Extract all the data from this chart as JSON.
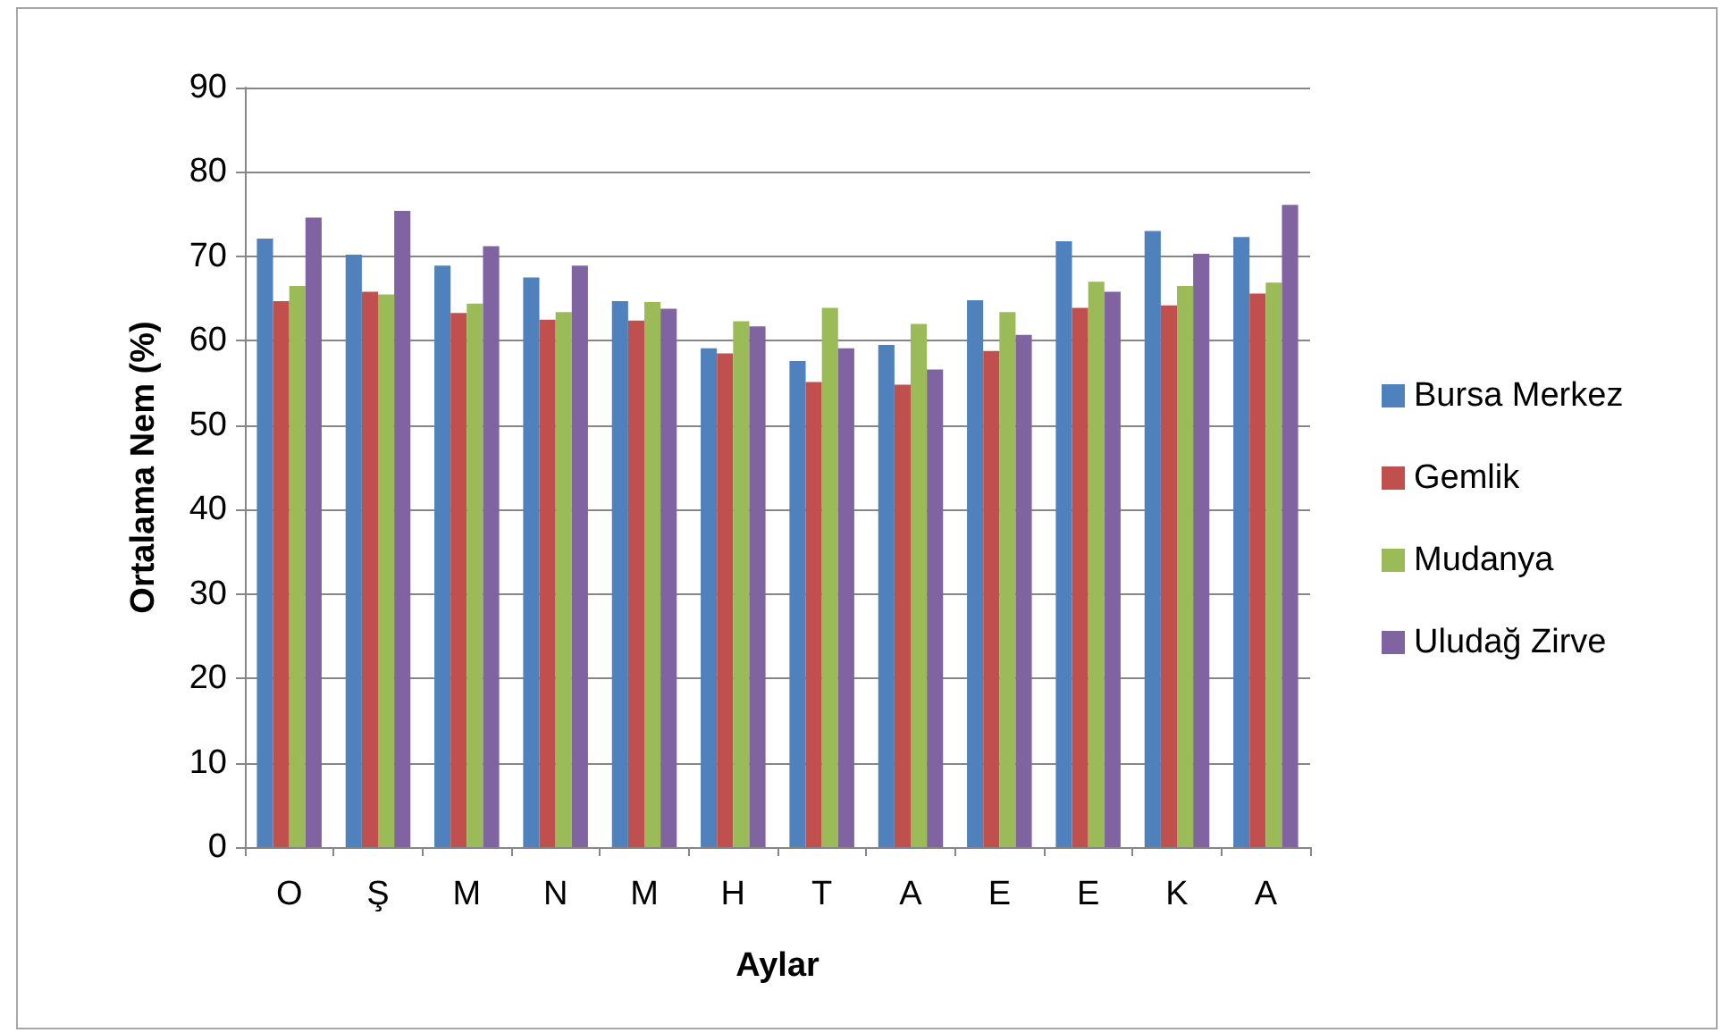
{
  "chart_data": {
    "type": "bar",
    "xlabel": "Aylar",
    "ylabel": "Ortalama Nem (%)",
    "categories": [
      "O",
      "Ş",
      "M",
      "N",
      "M",
      "H",
      "T",
      "A",
      "E",
      "E",
      "K",
      "A"
    ],
    "series": [
      {
        "name": "Bursa Merkez",
        "color": "#4f81bd",
        "values": [
          72.1,
          70.2,
          68.9,
          67.5,
          64.7,
          59.1,
          57.6,
          59.5,
          64.8,
          71.8,
          73.0,
          72.3
        ]
      },
      {
        "name": "Gemlik",
        "color": "#c0504d",
        "values": [
          64.7,
          65.8,
          63.3,
          62.5,
          62.4,
          58.5,
          55.1,
          54.8,
          58.8,
          63.9,
          64.2,
          65.6
        ]
      },
      {
        "name": "Mudanya",
        "color": "#9bbb59",
        "values": [
          66.5,
          65.5,
          64.4,
          63.4,
          64.6,
          62.3,
          63.9,
          62.0,
          63.4,
          67.0,
          66.5,
          66.9
        ]
      },
      {
        "name": "Uludağ Zirve",
        "color": "#8064a2",
        "values": [
          74.6,
          75.4,
          71.2,
          68.9,
          63.8,
          61.7,
          59.1,
          56.6,
          60.7,
          65.8,
          70.3,
          76.1
        ]
      }
    ],
    "ylim": [
      0,
      90
    ],
    "yticks": [
      0,
      10,
      20,
      30,
      40,
      50,
      60,
      70,
      80,
      90
    ],
    "grid": "y",
    "legend": "right"
  }
}
